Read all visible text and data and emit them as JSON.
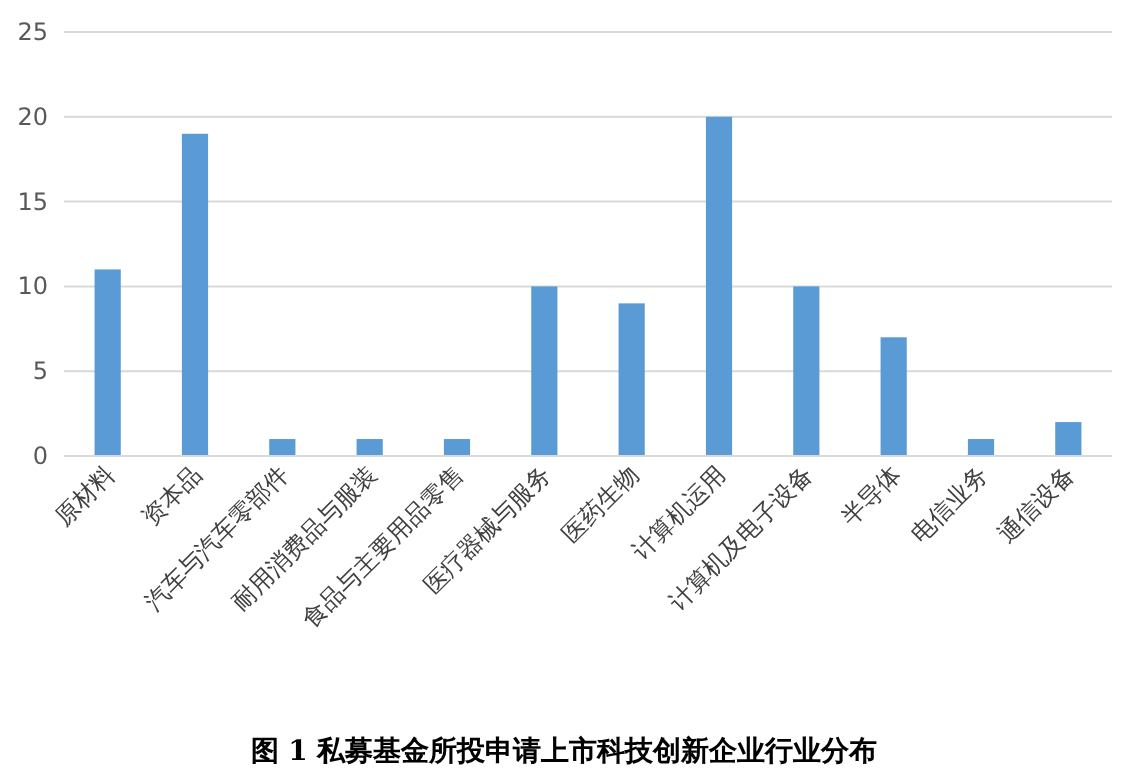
{
  "chart_data": {
    "type": "bar",
    "title": "图 1 私募基金所投申请上市科技创新企业行业分布",
    "categories": [
      "原材料",
      "资本品",
      "汽车与汽车零部件",
      "耐用消费品与服装",
      "食品与主要用品零售",
      "医疗器械与服务",
      "医药生物",
      "计算机运用",
      "计算机及电子设备",
      "半导体",
      "电信业务",
      "通信设备"
    ],
    "values": [
      11,
      19,
      1,
      1,
      1,
      10,
      9,
      20,
      10,
      7,
      1,
      2
    ],
    "color": "#5b9bd5",
    "ylim": [
      0,
      25
    ],
    "yticks": [
      0,
      5,
      10,
      15,
      20,
      25
    ],
    "grid": "y"
  }
}
